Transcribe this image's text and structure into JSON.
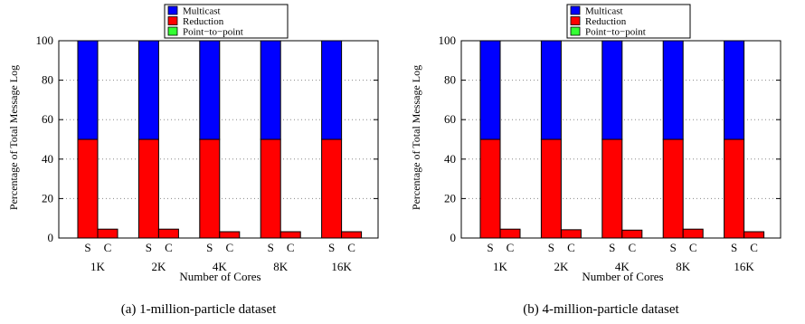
{
  "colors": {
    "multicast": "#0000ff",
    "reduction": "#ff0000",
    "point_to_point": "#33ff33",
    "grid": "#888888",
    "axis": "#000000"
  },
  "chart_data": [
    {
      "type": "bar",
      "stacked": true,
      "caption": "(a) 1-million-particle dataset",
      "xlabel": "Number of Cores",
      "ylabel": "Percentage of Total Message Log",
      "ylim": [
        0,
        100
      ],
      "yticks": [
        0,
        20,
        40,
        60,
        80,
        100
      ],
      "grid": "horizontal dotted",
      "legend_position": "top-center",
      "groups": [
        "1K",
        "2K",
        "4K",
        "8K",
        "16K"
      ],
      "bar_labels": [
        "S",
        "C"
      ],
      "series": [
        {
          "name": "Multicast",
          "S": [
            50,
            50,
            50,
            50,
            50
          ],
          "C": [
            0,
            0,
            0,
            0,
            0
          ]
        },
        {
          "name": "Reduction",
          "S": [
            50,
            50,
            50,
            50,
            50
          ],
          "C": [
            4.5,
            4.5,
            3.2,
            3.2,
            3.2
          ]
        },
        {
          "name": "Point−to−point",
          "S": [
            0,
            0,
            0,
            0,
            0
          ],
          "C": [
            0,
            0,
            0,
            0,
            0
          ]
        }
      ]
    },
    {
      "type": "bar",
      "stacked": true,
      "caption": "(b) 4-million-particle dataset",
      "xlabel": "Number of Cores",
      "ylabel": "Percentage of Total Message Log",
      "ylim": [
        0,
        100
      ],
      "yticks": [
        0,
        20,
        40,
        60,
        80,
        100
      ],
      "grid": "horizontal dotted",
      "legend_position": "top-center",
      "groups": [
        "1K",
        "2K",
        "4K",
        "8K",
        "16K"
      ],
      "bar_labels": [
        "S",
        "C"
      ],
      "series": [
        {
          "name": "Multicast",
          "S": [
            50,
            50,
            50,
            50,
            50
          ],
          "C": [
            0,
            0,
            0,
            0,
            0
          ]
        },
        {
          "name": "Reduction",
          "S": [
            50,
            50,
            50,
            50,
            50
          ],
          "C": [
            4.5,
            4.2,
            4.0,
            4.5,
            3.2
          ]
        },
        {
          "name": "Point−to−point",
          "S": [
            0,
            0,
            0,
            0,
            0
          ],
          "C": [
            0,
            0,
            0,
            0,
            0
          ]
        }
      ]
    }
  ]
}
